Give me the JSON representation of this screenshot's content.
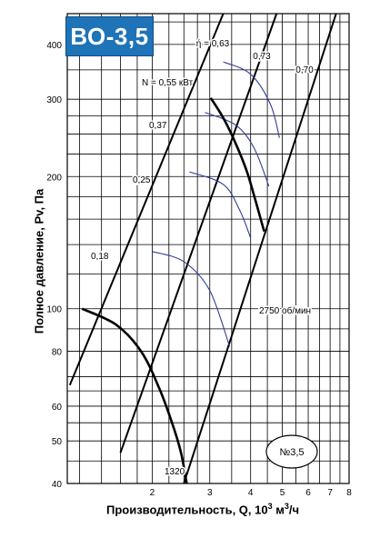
{
  "chart_data": {
    "type": "line",
    "title": "ВО-3,5",
    "ylabel": "Полное давление, Pv, Па",
    "xlabel_main": "Производительность, Q, 10",
    "xlabel_exp": "3",
    "xlabel_unit": " м",
    "xlabel_unit_exp": "3",
    "xlabel_tail": "/ч",
    "x_scale": "log",
    "y_scale": "log",
    "xlim": [
      1.1,
      8
    ],
    "ylim": [
      40,
      470
    ],
    "x_ticks": [
      "2",
      "3",
      "4",
      "5",
      "6",
      "7",
      "8"
    ],
    "y_ticks": [
      "40",
      "50",
      "60",
      "80",
      "100",
      "200",
      "300",
      "400"
    ],
    "grid": true,
    "size_badge": "№3,5",
    "speed_curves": [
      {
        "label": "2750 об/мин",
        "points": [
          [
            1.22,
            100
          ],
          [
            1.55,
            92
          ],
          [
            1.85,
            80
          ],
          [
            2.1,
            66
          ],
          [
            2.3,
            55
          ],
          [
            2.45,
            47
          ],
          [
            2.55,
            40
          ]
        ]
      },
      {
        "label": "1320",
        "points": [
          [
            3.02,
            302
          ],
          [
            3.3,
            272
          ],
          [
            3.6,
            238
          ],
          [
            3.9,
            205
          ],
          [
            4.15,
            175
          ],
          [
            4.4,
            150
          ]
        ]
      }
    ],
    "efficiency_lines": [
      {
        "label": "ή = 0,63",
        "points": [
          [
            1.12,
            67
          ],
          [
            3.3,
            470
          ]
        ]
      },
      {
        "label": "0,73",
        "points": [
          [
            1.6,
            47
          ],
          [
            4.8,
            470
          ]
        ]
      },
      {
        "label": "0,70",
        "points": [
          [
            2.5,
            40
          ],
          [
            7.3,
            470
          ]
        ]
      }
    ],
    "power_curves": [
      {
        "label": "N = 0,55 кВт",
        "points": [
          [
            3.3,
            365
          ],
          [
            4.0,
            342
          ],
          [
            4.6,
            292
          ],
          [
            4.9,
            245
          ]
        ]
      },
      {
        "label": "0,37",
        "points": [
          [
            2.9,
            280
          ],
          [
            3.6,
            262
          ],
          [
            4.1,
            232
          ],
          [
            4.55,
            190
          ]
        ]
      },
      {
        "label": "0,25",
        "points": [
          [
            2.6,
            205
          ],
          [
            3.3,
            192
          ],
          [
            3.7,
            168
          ],
          [
            4.0,
            145
          ]
        ]
      },
      {
        "label": "0,18",
        "points": [
          [
            2.0,
            135
          ],
          [
            2.5,
            128
          ],
          [
            3.0,
            110
          ],
          [
            3.45,
            82
          ]
        ]
      }
    ],
    "colors": {
      "title_bg": "#1f73b7",
      "power_curve": "#2f3f95",
      "line": "#000000"
    }
  }
}
